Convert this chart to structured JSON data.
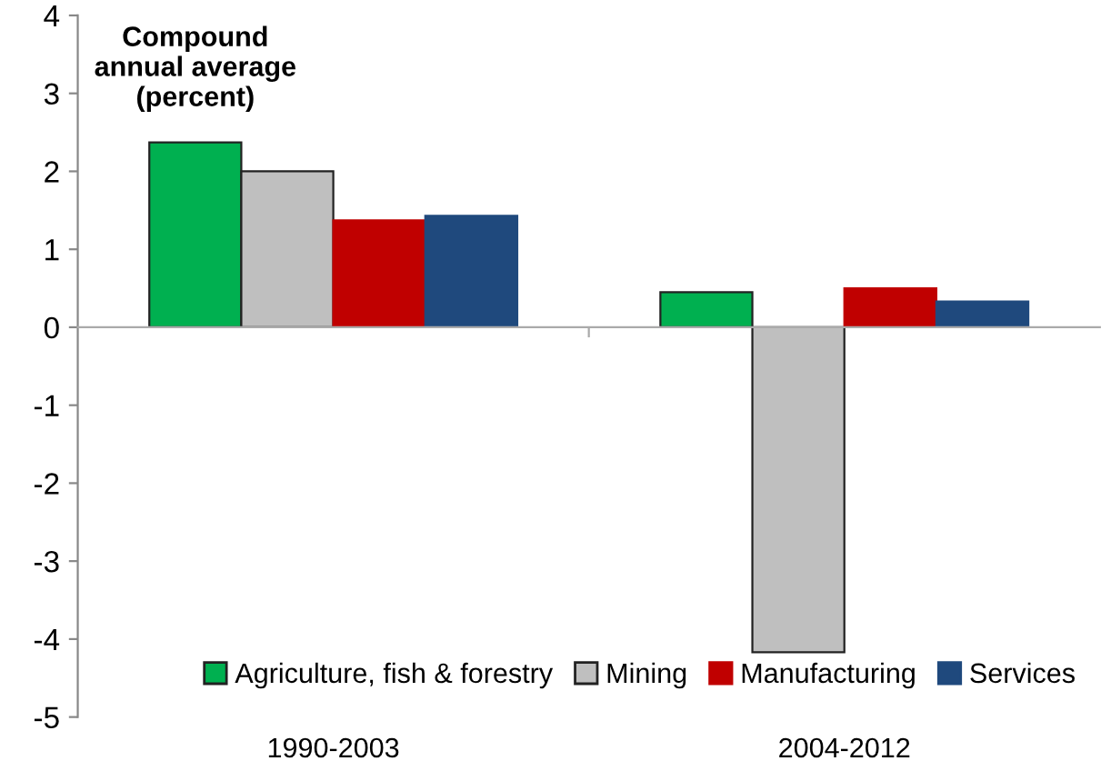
{
  "chart_data": {
    "type": "bar",
    "categories": [
      "1990-2003",
      "2004-2012"
    ],
    "series": [
      {
        "name": "Agriculture, fish & forestry",
        "color": "#00b050",
        "values": [
          2.37,
          0.45
        ]
      },
      {
        "name": "Mining",
        "color": "#bfbfbf",
        "values": [
          2.0,
          -4.17
        ]
      },
      {
        "name": "Manufacturing",
        "color": "#c00000",
        "values": [
          1.37,
          0.5
        ]
      },
      {
        "name": "Services",
        "color": "#1f497d",
        "values": [
          1.43,
          0.33
        ]
      }
    ],
    "ylim": [
      -5,
      4
    ],
    "yticks": [
      -5,
      -4,
      -3,
      -2,
      -1,
      0,
      1,
      2,
      3,
      4
    ],
    "annotations": [
      "Compound annual average (percent)"
    ],
    "legend": "bottom"
  }
}
